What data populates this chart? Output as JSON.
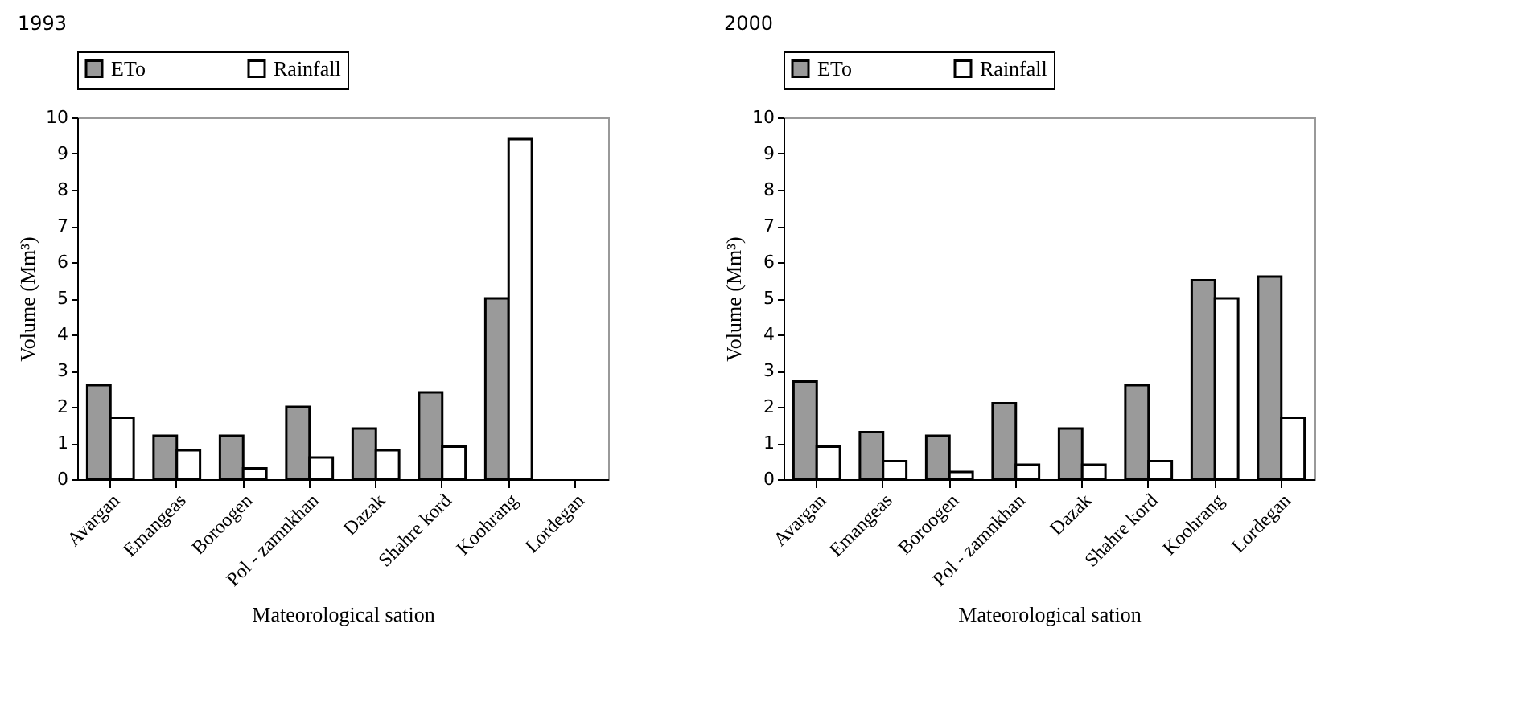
{
  "chart_data": [
    {
      "type": "bar",
      "title": "1993",
      "xlabel": "Mateorological sation",
      "ylabel": "Volume (Mm³)",
      "categories": [
        "Avargan",
        "Emangeas",
        "Boroogen",
        "Pol - zamnkhan",
        "Dazak",
        "Shahre kord",
        "Koohrang",
        "Lordegan"
      ],
      "series": [
        {
          "name": "ETo",
          "color": "#9a9a9a",
          "values": [
            2.6,
            1.2,
            1.2,
            2.0,
            1.4,
            2.4,
            5.0,
            null
          ]
        },
        {
          "name": "Rainfall",
          "color": "#ffffff",
          "values": [
            1.7,
            0.8,
            0.3,
            0.6,
            0.8,
            0.9,
            9.4,
            null
          ]
        }
      ],
      "ylim": [
        0,
        10
      ],
      "yticks": [
        0,
        1,
        2,
        3,
        4,
        5,
        6,
        7,
        8,
        9,
        10
      ],
      "legend": "top"
    },
    {
      "type": "bar",
      "title": "2000",
      "xlabel": "Mateorological sation",
      "ylabel": "Volume (Mm³)",
      "categories": [
        "Avargan",
        "Emangeas",
        "Boroogen",
        "Pol - zamnkhan",
        "Dazak",
        "Shahre kord",
        "Koohrang",
        "Lordegan"
      ],
      "series": [
        {
          "name": "ETo",
          "color": "#9a9a9a",
          "values": [
            2.7,
            1.3,
            1.2,
            2.1,
            1.4,
            2.6,
            5.5,
            5.6
          ]
        },
        {
          "name": "Rainfall",
          "color": "#ffffff",
          "values": [
            0.9,
            0.5,
            0.2,
            0.4,
            0.4,
            0.5,
            5.0,
            1.7
          ]
        }
      ],
      "ylim": [
        0,
        10
      ],
      "yticks": [
        0,
        1,
        2,
        3,
        4,
        5,
        6,
        7,
        8,
        9,
        10
      ],
      "legend": "top"
    }
  ]
}
